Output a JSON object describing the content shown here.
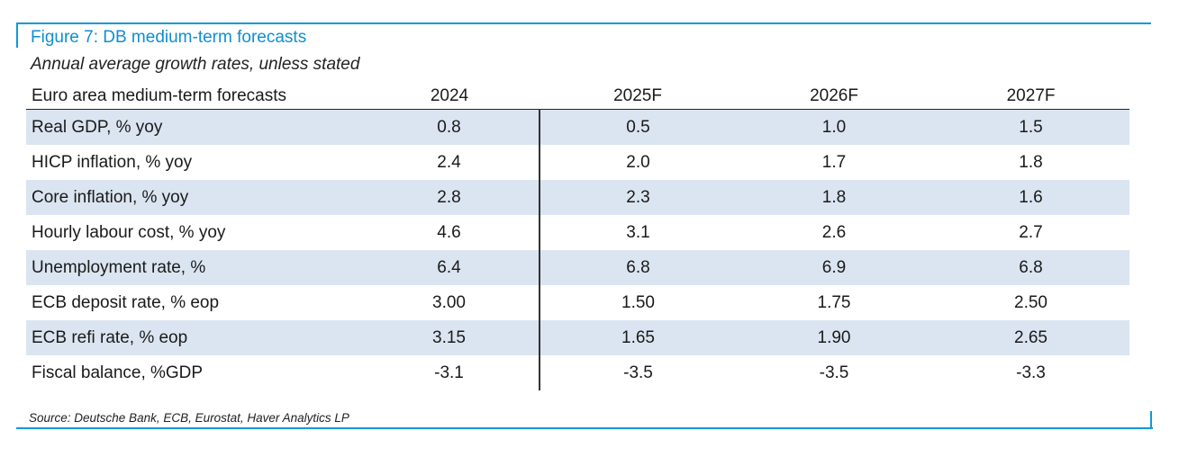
{
  "figure": {
    "title": "Figure 7: DB medium-term forecasts",
    "subtitle": "Annual average growth rates, unless stated",
    "source": "Source: Deutsche Bank, ECB, Eurostat, Haver Analytics LP"
  },
  "colors": {
    "accent": "#0e9ad6",
    "row_shade": "#dbe5f1"
  },
  "chart_data": {
    "type": "table",
    "header": [
      "Euro area medium-term forecasts",
      "2024",
      "2025F",
      "2026F",
      "2027F"
    ],
    "rows": [
      [
        "Real GDP, % yoy",
        "0.8",
        "0.5",
        "1.0",
        "1.5"
      ],
      [
        "HICP inflation, % yoy",
        "2.4",
        "2.0",
        "1.7",
        "1.8"
      ],
      [
        "Core inflation, % yoy",
        "2.8",
        "2.3",
        "1.8",
        "1.6"
      ],
      [
        "Hourly labour cost, % yoy",
        "4.6",
        "3.1",
        "2.6",
        "2.7"
      ],
      [
        "Unemployment rate, %",
        "6.4",
        "6.8",
        "6.9",
        "6.8"
      ],
      [
        "ECB deposit rate, % eop",
        "3.00",
        "1.50",
        "1.75",
        "2.50"
      ],
      [
        "ECB refi rate, % eop",
        "3.15",
        "1.65",
        "1.90",
        "2.65"
      ],
      [
        "Fiscal balance, %GDP",
        "-3.1",
        "-3.5",
        "-3.5",
        "-3.3"
      ]
    ]
  }
}
